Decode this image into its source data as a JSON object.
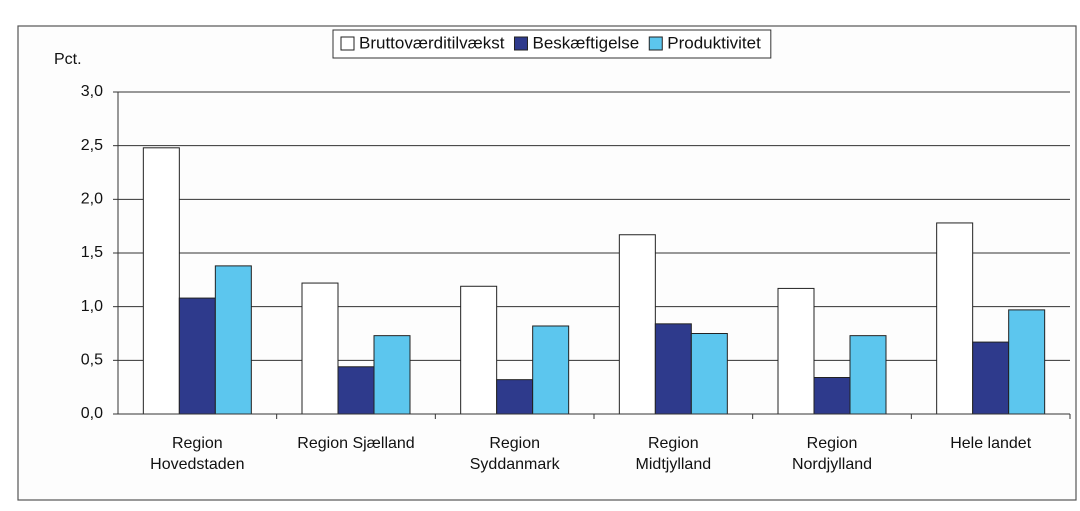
{
  "chart_data": {
    "type": "bar",
    "y_axis_label": "Pct.",
    "categories": [
      "Region\nHovedstaden",
      "Region Sjælland",
      "Region\nSyddanmark",
      "Region\nMidtjylland",
      "Region\nNordjylland",
      "Hele landet"
    ],
    "series": [
      {
        "name": "Bruttoværditilvækst",
        "color": "#ffffff",
        "values": [
          2.48,
          1.22,
          1.19,
          1.67,
          1.17,
          1.78
        ]
      },
      {
        "name": "Beskæftigelse",
        "color": "#2e3a8c",
        "values": [
          1.08,
          0.44,
          0.32,
          0.84,
          0.34,
          0.67
        ]
      },
      {
        "name": "Produktivitet",
        "color": "#5cc6ee",
        "values": [
          1.38,
          0.73,
          0.82,
          0.75,
          0.73,
          0.97
        ]
      }
    ],
    "ylim": [
      0,
      3
    ],
    "yticks": [
      {
        "value": 0,
        "label": "0,0"
      },
      {
        "value": 0.5,
        "label": "0,5"
      },
      {
        "value": 1,
        "label": "1,0"
      },
      {
        "value": 1.5,
        "label": "1,5"
      },
      {
        "value": 2,
        "label": "2,0"
      },
      {
        "value": 2.5,
        "label": "2,5"
      },
      {
        "value": 3,
        "label": "3,0"
      }
    ],
    "grid": true,
    "legend": "top"
  }
}
